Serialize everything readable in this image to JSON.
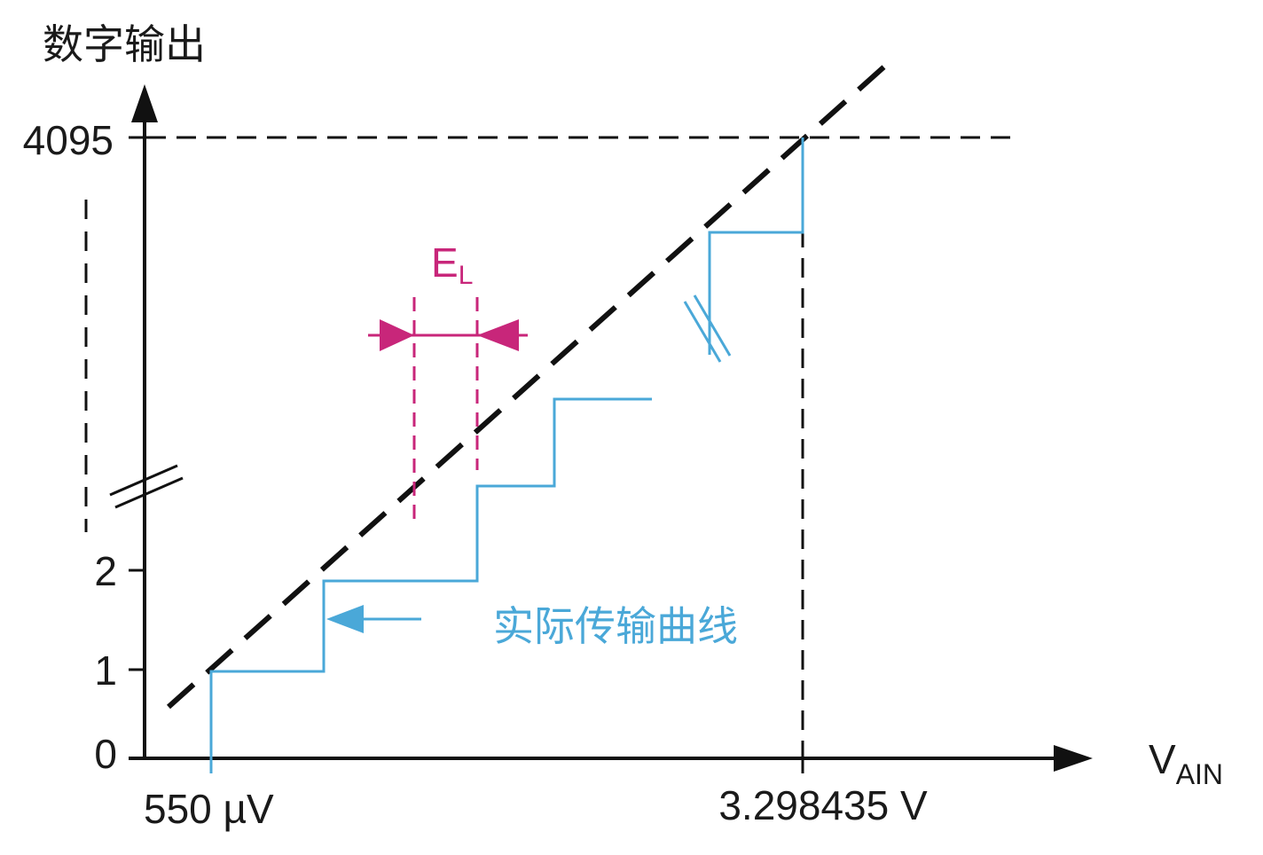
{
  "axes": {
    "y_label": "数字输出",
    "x_label": {
      "main": "V",
      "sub": "AIN"
    }
  },
  "y_ticks": [
    "4095",
    "2",
    "1",
    "0"
  ],
  "x_ticks": [
    "550 µV",
    "3.298435 V"
  ],
  "annotations": {
    "error": {
      "main": "E",
      "sub": "L"
    },
    "curve": "实际传输曲线"
  }
}
